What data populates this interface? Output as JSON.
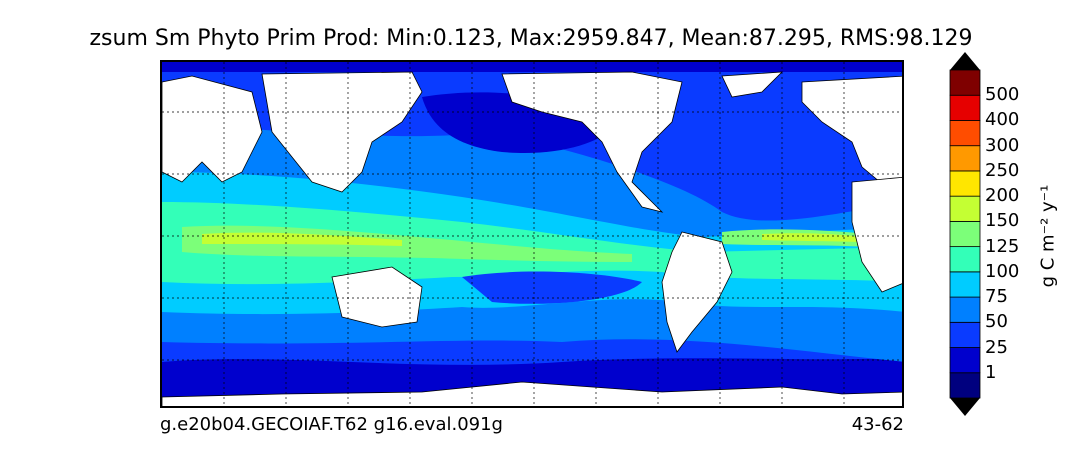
{
  "title": "zsum Sm Phyto Prim Prod: Min:0.123, Max:2959.847, Mean:87.295, RMS:98.129",
  "footer": {
    "left": "g.e20b04.GECOIAF.T62 g16.eval.091g",
    "right": "43-62"
  },
  "colorbar": {
    "units": "g C m⁻² y⁻¹",
    "levels": [
      {
        "label": "",
        "color": "#00007f"
      },
      {
        "label": "1",
        "color": "#0000cd"
      },
      {
        "label": "25",
        "color": "#0a3bff"
      },
      {
        "label": "50",
        "color": "#0080ff"
      },
      {
        "label": "75",
        "color": "#00ccff"
      },
      {
        "label": "100",
        "color": "#33ffb8"
      },
      {
        "label": "125",
        "color": "#7cff79"
      },
      {
        "label": "150",
        "color": "#c4ff33"
      },
      {
        "label": "200",
        "color": "#ffe600"
      },
      {
        "label": "250",
        "color": "#ff9900"
      },
      {
        "label": "300",
        "color": "#ff4d00"
      },
      {
        "label": "400",
        "color": "#e60000"
      },
      {
        "label": "500",
        "color": "#7f0000"
      }
    ]
  }
}
